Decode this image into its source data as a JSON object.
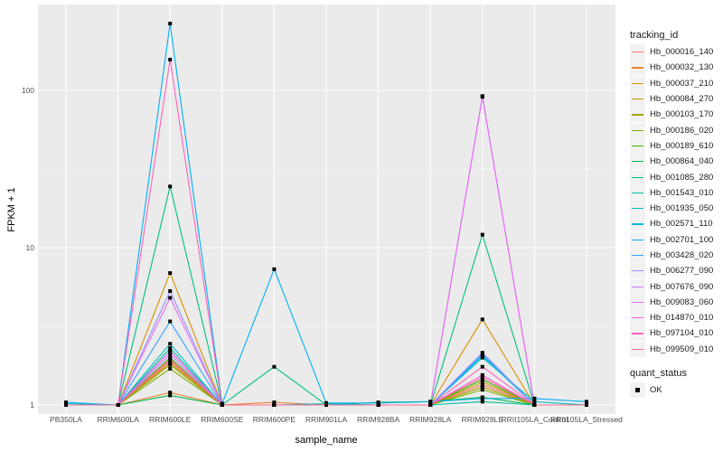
{
  "chart_data": {
    "type": "line",
    "xlabel": "sample_name",
    "ylabel": "FPKM + 1",
    "yscale": "log10",
    "ylim": [
      0.9,
      330
    ],
    "yticks": [
      1,
      10,
      100
    ],
    "ytick_labels": [
      "1",
      "10",
      "100"
    ],
    "grid": true,
    "legend_position": "right",
    "categories": [
      "PB350LA",
      "RRIM600LA",
      "RRIM600LE",
      "RRIM600SE",
      "RRIM600PE",
      "RRIM901LA",
      "RRIM928BA",
      "RRIM928LA",
      "RRIM928LE",
      "RRII105LA_Control",
      "RRII105LA_Stressed"
    ],
    "color_legend_title": "tracking_id",
    "shape_legend_title": "quant_status",
    "shape_legend_items": [
      "OK"
    ],
    "series": [
      {
        "name": "Hb_000016_140",
        "color": "#F8766D",
        "values": [
          1,
          1,
          1.9,
          1,
          1,
          1,
          1,
          1,
          1.35,
          1,
          1
        ]
      },
      {
        "name": "Hb_000032_130",
        "color": "#EA8331",
        "values": [
          1,
          1,
          1.2,
          1,
          1.04,
          1,
          1,
          1,
          1.3,
          1,
          1
        ]
      },
      {
        "name": "Hb_000037_210",
        "color": "#D89000",
        "values": [
          1,
          1,
          6.9,
          1,
          1,
          1,
          1,
          1,
          3.5,
          1,
          1
        ]
      },
      {
        "name": "Hb_000084_270",
        "color": "#C09B00",
        "values": [
          1,
          1,
          1.85,
          1,
          1,
          1,
          1,
          1,
          1.4,
          1,
          1
        ]
      },
      {
        "name": "Hb_000103_170",
        "color": "#A3A500",
        "values": [
          1,
          1,
          1.8,
          1,
          1,
          1,
          1,
          1,
          1.3,
          1,
          1
        ]
      },
      {
        "name": "Hb_000186_020",
        "color": "#7CAE00",
        "values": [
          1,
          1,
          1.7,
          1,
          1,
          1,
          1,
          1,
          1.25,
          1,
          1
        ]
      },
      {
        "name": "Hb_000189_610",
        "color": "#39B600",
        "values": [
          1,
          1,
          2.0,
          1,
          1,
          1,
          1,
          1,
          1.45,
          1,
          1
        ]
      },
      {
        "name": "Hb_000864_040",
        "color": "#00BB4E",
        "values": [
          1,
          1,
          1.15,
          1,
          1,
          1,
          1.04,
          1.05,
          1.12,
          1,
          1
        ]
      },
      {
        "name": "Hb_001085_280",
        "color": "#00BF7D",
        "values": [
          1,
          1,
          24.5,
          1,
          1.75,
          1,
          1,
          1,
          12.1,
          1,
          1
        ]
      },
      {
        "name": "Hb_001543_010",
        "color": "#00C1A3",
        "values": [
          1,
          1,
          2.3,
          1,
          1,
          1,
          1,
          1,
          1.05,
          1,
          1
        ]
      },
      {
        "name": "Hb_001935_050",
        "color": "#00BFC4",
        "values": [
          1.02,
          1,
          2.45,
          1,
          1,
          1.02,
          1,
          1,
          2.0,
          1.05,
          1
        ]
      },
      {
        "name": "Hb_002571_110",
        "color": "#00BAE0",
        "values": [
          1,
          1,
          2.2,
          1,
          1,
          1,
          1,
          1,
          2.05,
          1,
          1
        ]
      },
      {
        "name": "Hb_002701_100",
        "color": "#00B0F6",
        "values": [
          1.04,
          1,
          266,
          1.02,
          7.3,
          1.03,
          1.03,
          1.05,
          1.1,
          1.1,
          1.05
        ]
      },
      {
        "name": "Hb_003428_020",
        "color": "#35A2FF",
        "values": [
          1,
          1,
          3.4,
          1,
          1,
          1,
          1,
          1,
          2.1,
          1,
          1
        ]
      },
      {
        "name": "Hb_006277_090",
        "color": "#9590FF",
        "values": [
          1,
          1,
          5.3,
          1,
          1,
          1,
          1,
          1,
          2.15,
          1,
          1
        ]
      },
      {
        "name": "Hb_007676_090",
        "color": "#C77CFF",
        "values": [
          1,
          1,
          2.1,
          1,
          1,
          1,
          1,
          1,
          92,
          1,
          1
        ]
      },
      {
        "name": "Hb_009083_060",
        "color": "#E76BF3",
        "values": [
          1,
          1,
          4.8,
          1,
          1,
          1,
          1,
          1,
          91,
          1,
          1
        ]
      },
      {
        "name": "Hb_014870_010",
        "color": "#FA62DB",
        "values": [
          1,
          1,
          2.2,
          1,
          1,
          1,
          1,
          1,
          1.55,
          1,
          1
        ]
      },
      {
        "name": "Hb_097104_010",
        "color": "#FF62BC",
        "values": [
          1,
          1,
          157,
          1,
          1,
          1,
          1,
          1,
          1.75,
          1,
          1
        ]
      },
      {
        "name": "Hb_099509_010",
        "color": "#FF6C91",
        "values": [
          1,
          1,
          1.95,
          1,
          1,
          1,
          1,
          1,
          1.5,
          1,
          1
        ]
      }
    ]
  }
}
